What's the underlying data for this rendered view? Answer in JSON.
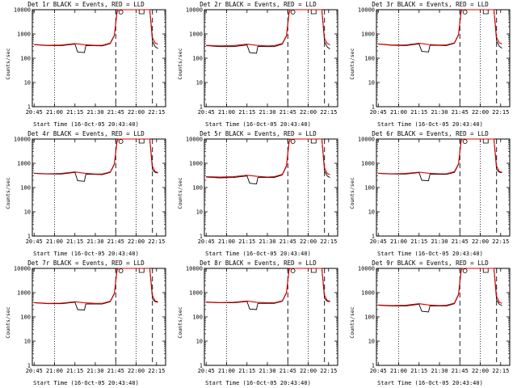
{
  "colors": {
    "events": "#000000",
    "lld": "#dd0000",
    "background": "#ffffff"
  },
  "chart_data": [
    {
      "type": "line",
      "title": "Det 1r BLACK = Events, RED = LLD",
      "xlabel": "Start Time (16-Oct-05 20:43:40)",
      "ylabel": "Counts/sec",
      "xticks": [
        "20:45",
        "21:00",
        "21:15",
        "21:30",
        "21:45",
        "22:00",
        "22:15"
      ],
      "yticks": [
        "1",
        "10",
        "100",
        "1000",
        "10000"
      ],
      "ylim": [
        1,
        10000
      ],
      "yscale": "log",
      "series": [
        {
          "name": "Events",
          "x": [
            "20:45",
            "20:55",
            "21:05",
            "21:15",
            "21:17",
            "21:22",
            "21:23",
            "21:28",
            "21:35",
            "21:41",
            "21:44",
            "21:46",
            "21:47",
            "22:10",
            "22:12",
            "22:14",
            "22:16"
          ],
          "values": [
            360,
            330,
            330,
            380,
            180,
            170,
            330,
            330,
            320,
            400,
            850,
            8000,
            10000,
            10000,
            500,
            300,
            250
          ]
        },
        {
          "name": "LLD",
          "x": [
            "20:45",
            "20:55",
            "21:05",
            "21:15",
            "21:22",
            "21:30",
            "21:35",
            "21:41",
            "21:44",
            "21:46",
            "21:47",
            "22:10",
            "22:12",
            "22:14",
            "22:16"
          ],
          "values": [
            370,
            340,
            350,
            400,
            360,
            340,
            340,
            420,
            900,
            8500,
            10000,
            10000,
            700,
            420,
            380
          ]
        }
      ]
    },
    {
      "type": "line",
      "title": "Det 2r BLACK = Events, RED = LLD",
      "xlabel": "Start Time (16-Oct-05 20:43:40)",
      "ylabel": "Counts/sec",
      "xticks": [
        "20:45",
        "21:00",
        "21:15",
        "21:30",
        "21:45",
        "22:00",
        "22:15"
      ],
      "yticks": [
        "1",
        "10",
        "100",
        "1000",
        "10000"
      ],
      "ylim": [
        1,
        10000
      ],
      "yscale": "log",
      "series": [
        {
          "name": "Events",
          "x": [
            "20:45",
            "20:55",
            "21:05",
            "21:15",
            "21:17",
            "21:22",
            "21:23",
            "21:28",
            "21:35",
            "21:41",
            "21:44",
            "21:46",
            "21:47",
            "22:10",
            "22:12",
            "22:14",
            "22:16"
          ],
          "values": [
            330,
            300,
            300,
            350,
            170,
            160,
            310,
            300,
            300,
            380,
            800,
            7500,
            10000,
            10000,
            480,
            290,
            240
          ]
        },
        {
          "name": "LLD",
          "x": [
            "20:45",
            "20:55",
            "21:05",
            "21:15",
            "21:22",
            "21:30",
            "21:35",
            "21:41",
            "21:44",
            "21:46",
            "21:47",
            "22:10",
            "22:12",
            "22:14",
            "22:16"
          ],
          "values": [
            340,
            320,
            330,
            380,
            340,
            320,
            330,
            400,
            850,
            8000,
            10000,
            10000,
            650,
            400,
            360
          ]
        }
      ]
    },
    {
      "type": "line",
      "title": "Det 3r BLACK = Events, RED = LLD",
      "xlabel": "Start Time (16-Oct-05 20:43:40)",
      "ylabel": "Counts/sec",
      "xticks": [
        "20:45",
        "21:00",
        "21:15",
        "21:30",
        "21:45",
        "22:00",
        "22:15"
      ],
      "yticks": [
        "1",
        "10",
        "100",
        "1000",
        "10000"
      ],
      "ylim": [
        1,
        10000
      ],
      "yscale": "log",
      "series": [
        {
          "name": "Events",
          "x": [
            "20:45",
            "20:55",
            "21:05",
            "21:15",
            "21:17",
            "21:22",
            "21:23",
            "21:28",
            "21:35",
            "21:41",
            "21:44",
            "21:46",
            "21:47",
            "22:10",
            "22:12",
            "22:14",
            "22:16"
          ],
          "values": [
            380,
            340,
            330,
            390,
            190,
            180,
            340,
            340,
            330,
            410,
            900,
            8500,
            10000,
            10000,
            520,
            310,
            260
          ]
        },
        {
          "name": "LLD",
          "x": [
            "20:45",
            "20:55",
            "21:05",
            "21:15",
            "21:22",
            "21:30",
            "21:35",
            "21:41",
            "21:44",
            "21:46",
            "21:47",
            "22:10",
            "22:12",
            "22:14",
            "22:16"
          ],
          "values": [
            390,
            350,
            350,
            410,
            370,
            350,
            350,
            430,
            950,
            9000,
            10000,
            10000,
            720,
            430,
            390
          ]
        }
      ]
    },
    {
      "type": "line",
      "title": "Det 4r BLACK = Events, RED = LLD",
      "xlabel": "Start Time (16-Oct-05 20:43:40)",
      "ylabel": "Counts/sec",
      "xticks": [
        "20:45",
        "21:00",
        "21:15",
        "21:30",
        "21:45",
        "22:00",
        "22:15"
      ],
      "yticks": [
        "1",
        "10",
        "100",
        "1000",
        "10000"
      ],
      "ylim": [
        1,
        10000
      ],
      "yscale": "log",
      "series": [
        {
          "name": "Events",
          "x": [
            "20:45",
            "20:55",
            "21:05",
            "21:15",
            "21:17",
            "21:22",
            "21:23",
            "21:28",
            "21:35",
            "21:41",
            "21:44",
            "21:46",
            "21:47",
            "22:10",
            "22:12",
            "22:14",
            "22:16"
          ],
          "values": [
            380,
            360,
            360,
            420,
            190,
            180,
            350,
            350,
            340,
            420,
            900,
            8000,
            10000,
            10000,
            550,
            420,
            400
          ]
        },
        {
          "name": "LLD",
          "x": [
            "20:45",
            "20:55",
            "21:05",
            "21:15",
            "21:22",
            "21:30",
            "21:35",
            "21:41",
            "21:44",
            "21:46",
            "21:47",
            "22:10",
            "22:12",
            "22:14",
            "22:16"
          ],
          "values": [
            390,
            370,
            380,
            440,
            390,
            360,
            360,
            440,
            950,
            8500,
            10000,
            10000,
            750,
            450,
            420
          ]
        }
      ]
    },
    {
      "type": "line",
      "title": "Det 5r BLACK = Events, RED = LLD",
      "xlabel": "Start Time (16-Oct-05 20:43:40)",
      "ylabel": "Counts/sec",
      "xticks": [
        "20:45",
        "21:00",
        "21:15",
        "21:30",
        "21:45",
        "22:00",
        "22:15"
      ],
      "yticks": [
        "1",
        "10",
        "100",
        "1000",
        "10000"
      ],
      "ylim": [
        1,
        10000
      ],
      "yscale": "log",
      "series": [
        {
          "name": "Events",
          "x": [
            "20:45",
            "20:55",
            "21:05",
            "21:15",
            "21:17",
            "21:22",
            "21:23",
            "21:28",
            "21:35",
            "21:41",
            "21:44",
            "21:46",
            "21:47",
            "22:10",
            "22:12",
            "22:14",
            "22:16"
          ],
          "values": [
            270,
            250,
            260,
            300,
            150,
            140,
            260,
            260,
            260,
            330,
            750,
            7500,
            10000,
            10000,
            480,
            300,
            260
          ]
        },
        {
          "name": "LLD",
          "x": [
            "20:45",
            "20:55",
            "21:05",
            "21:15",
            "21:22",
            "21:30",
            "21:35",
            "21:41",
            "21:44",
            "21:46",
            "21:47",
            "22:10",
            "22:12",
            "22:14",
            "22:16"
          ],
          "values": [
            280,
            270,
            280,
            320,
            290,
            270,
            280,
            350,
            800,
            8000,
            10000,
            10000,
            650,
            380,
            340
          ]
        }
      ]
    },
    {
      "type": "line",
      "title": "Det 6r BLACK = Events, RED = LLD",
      "xlabel": "Start Time (16-Oct-05 20:43:40)",
      "ylabel": "Counts/sec",
      "xticks": [
        "20:45",
        "21:00",
        "21:15",
        "21:30",
        "21:45",
        "22:00",
        "22:15"
      ],
      "yticks": [
        "1",
        "10",
        "100",
        "1000",
        "10000"
      ],
      "ylim": [
        1,
        10000
      ],
      "yscale": "log",
      "series": [
        {
          "name": "Events",
          "x": [
            "20:45",
            "20:55",
            "21:05",
            "21:15",
            "21:17",
            "21:22",
            "21:23",
            "21:28",
            "21:35",
            "21:41",
            "21:44",
            "21:46",
            "21:47",
            "22:10",
            "22:12",
            "22:14",
            "22:16"
          ],
          "values": [
            380,
            360,
            360,
            410,
            200,
            190,
            350,
            350,
            350,
            420,
            900,
            8500,
            10000,
            10000,
            560,
            430,
            410
          ]
        },
        {
          "name": "LLD",
          "x": [
            "20:45",
            "20:55",
            "21:05",
            "21:15",
            "21:22",
            "21:30",
            "21:35",
            "21:41",
            "21:44",
            "21:46",
            "21:47",
            "22:10",
            "22:12",
            "22:14",
            "22:16"
          ],
          "values": [
            390,
            370,
            380,
            430,
            390,
            370,
            370,
            450,
            950,
            9000,
            10000,
            10000,
            760,
            460,
            430
          ]
        }
      ]
    },
    {
      "type": "line",
      "title": "Det 7r BLACK = Events, RED = LLD",
      "xlabel": "Start Time (16-Oct-05 20:43:40)",
      "ylabel": "Counts/sec",
      "xticks": [
        "20:45",
        "21:00",
        "21:15",
        "21:30",
        "21:45",
        "22:00",
        "22:15"
      ],
      "yticks": [
        "1",
        "10",
        "100",
        "1000",
        "10000"
      ],
      "ylim": [
        1,
        10000
      ],
      "yscale": "log",
      "series": [
        {
          "name": "Events",
          "x": [
            "20:45",
            "20:55",
            "21:05",
            "21:15",
            "21:17",
            "21:22",
            "21:23",
            "21:28",
            "21:35",
            "21:41",
            "21:44",
            "21:46",
            "21:47",
            "22:10",
            "22:12",
            "22:14",
            "22:16"
          ],
          "values": [
            380,
            350,
            350,
            400,
            200,
            190,
            340,
            340,
            340,
            420,
            900,
            8500,
            10000,
            10000,
            560,
            420,
            400
          ]
        },
        {
          "name": "LLD",
          "x": [
            "20:45",
            "20:55",
            "21:05",
            "21:15",
            "21:22",
            "21:30",
            "21:35",
            "21:41",
            "21:44",
            "21:46",
            "21:47",
            "22:10",
            "22:12",
            "22:14",
            "22:16"
          ],
          "values": [
            390,
            360,
            370,
            420,
            380,
            360,
            360,
            440,
            950,
            9000,
            10000,
            10000,
            760,
            450,
            420
          ]
        }
      ]
    },
    {
      "type": "line",
      "title": "Det 8r BLACK = Events, RED = LLD",
      "xlabel": "Start Time (16-Oct-05 20:43:40)",
      "ylabel": "Counts/sec",
      "xticks": [
        "20:45",
        "21:00",
        "21:15",
        "21:30",
        "21:45",
        "22:00",
        "22:15"
      ],
      "yticks": [
        "1",
        "10",
        "100",
        "1000",
        "10000"
      ],
      "ylim": [
        1,
        10000
      ],
      "yscale": "log",
      "series": [
        {
          "name": "Events",
          "x": [
            "20:45",
            "20:55",
            "21:05",
            "21:15",
            "21:17",
            "21:22",
            "21:23",
            "21:28",
            "21:35",
            "21:41",
            "21:44",
            "21:46",
            "21:47",
            "22:10",
            "22:12",
            "22:14",
            "22:16"
          ],
          "values": [
            400,
            380,
            380,
            430,
            210,
            200,
            360,
            360,
            360,
            440,
            950,
            9000,
            10000,
            10000,
            580,
            440,
            420
          ]
        },
        {
          "name": "LLD",
          "x": [
            "20:45",
            "20:55",
            "21:05",
            "21:15",
            "21:22",
            "21:30",
            "21:35",
            "21:41",
            "21:44",
            "21:46",
            "21:47",
            "22:10",
            "22:12",
            "22:14",
            "22:16"
          ],
          "values": [
            410,
            390,
            400,
            450,
            400,
            380,
            380,
            460,
            1000,
            9500,
            10000,
            10000,
            780,
            470,
            440
          ]
        }
      ]
    },
    {
      "type": "line",
      "title": "Det 9r BLACK = Events, RED = LLD",
      "xlabel": "Start Time (16-Oct-05 20:43:40)",
      "ylabel": "Counts/sec",
      "xticks": [
        "20:45",
        "21:00",
        "21:15",
        "21:30",
        "21:45",
        "22:00",
        "22:15"
      ],
      "yticks": [
        "1",
        "10",
        "100",
        "1000",
        "10000"
      ],
      "ylim": [
        1,
        10000
      ],
      "yscale": "log",
      "series": [
        {
          "name": "Events",
          "x": [
            "20:45",
            "20:55",
            "21:05",
            "21:15",
            "21:17",
            "21:22",
            "21:23",
            "21:28",
            "21:35",
            "21:41",
            "21:44",
            "21:46",
            "21:47",
            "22:10",
            "22:12",
            "22:14",
            "22:16"
          ],
          "values": [
            300,
            280,
            280,
            330,
            170,
            160,
            280,
            280,
            280,
            350,
            800,
            8000,
            10000,
            10000,
            500,
            330,
            290
          ]
        },
        {
          "name": "LLD",
          "x": [
            "20:45",
            "20:55",
            "21:05",
            "21:15",
            "21:22",
            "21:30",
            "21:35",
            "21:41",
            "21:44",
            "21:46",
            "21:47",
            "22:10",
            "22:12",
            "22:14",
            "22:16"
          ],
          "values": [
            310,
            290,
            300,
            350,
            310,
            290,
            300,
            370,
            850,
            8500,
            10000,
            10000,
            700,
            400,
            360
          ]
        }
      ]
    }
  ]
}
